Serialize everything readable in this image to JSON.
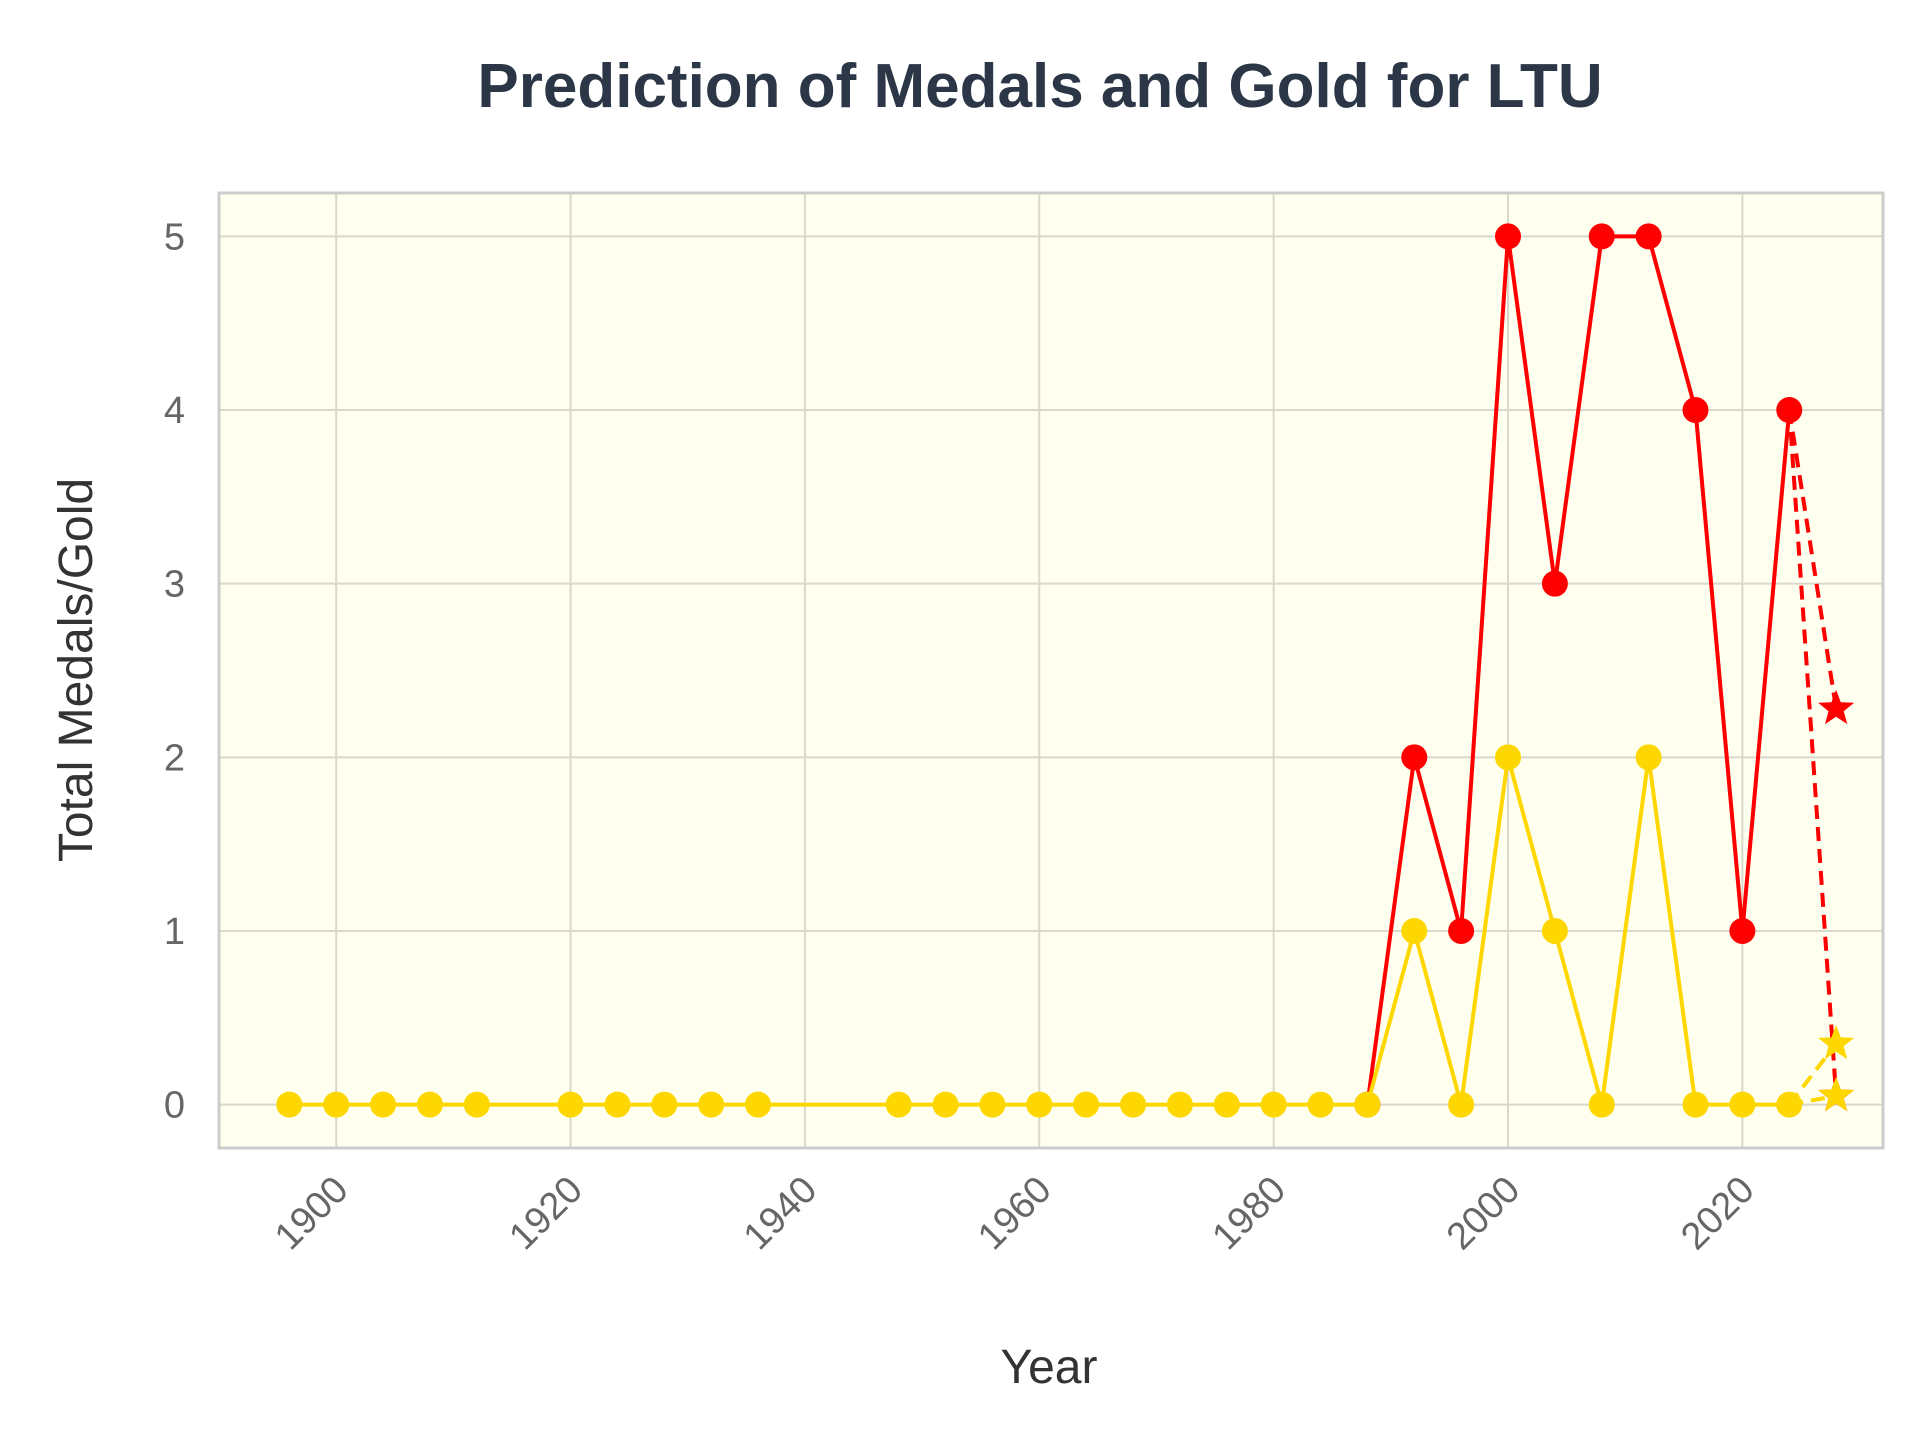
{
  "chart_data": {
    "type": "line",
    "title": "Prediction of Medals and Gold for LTU",
    "xlabel": "Year",
    "ylabel": "Total Medals/Gold",
    "xlim": [
      1890,
      2032
    ],
    "ylim": [
      -0.25,
      5.25
    ],
    "xticks": [
      1900,
      1920,
      1940,
      1960,
      1980,
      2000,
      2020
    ],
    "yticks": [
      0,
      1,
      2,
      3,
      4,
      5
    ],
    "grid": true,
    "legend": "none",
    "colors": {
      "background": "#fffff0",
      "total": "#ff0000",
      "gold": "#ffd700",
      "frame": "#cccccc",
      "grid": "#d8d8cc"
    },
    "series": [
      {
        "key": "total",
        "style": "solid",
        "marker": "circle",
        "color": "#ff0000",
        "x": [
          1988,
          1992,
          1996,
          2000,
          2004,
          2008,
          2012,
          2016,
          2020,
          2024
        ],
        "y": [
          0,
          2,
          1,
          5,
          3,
          5,
          5,
          4,
          1,
          4
        ]
      },
      {
        "key": "gold",
        "style": "solid",
        "marker": "circle",
        "color": "#ffd700",
        "x": [
          1896,
          1900,
          1904,
          1908,
          1912,
          1920,
          1924,
          1928,
          1932,
          1936,
          1948,
          1952,
          1956,
          1960,
          1964,
          1968,
          1972,
          1976,
          1980,
          1984,
          1988,
          1992,
          1996,
          2000,
          2004,
          2008,
          2012,
          2016,
          2020,
          2024
        ],
        "y": [
          0,
          0,
          0,
          0,
          0,
          0,
          0,
          0,
          0,
          0,
          0,
          0,
          0,
          0,
          0,
          0,
          0,
          0,
          0,
          0,
          0,
          1,
          0,
          2,
          1,
          0,
          2,
          0,
          0,
          0
        ]
      },
      {
        "key": "total-prediction-lower",
        "style": "dashed",
        "marker": "star",
        "color": "#ff0000",
        "x": [
          2024,
          2028
        ],
        "y": [
          4,
          0.05
        ]
      },
      {
        "key": "total-prediction",
        "style": "dashed",
        "marker": "star",
        "color": "#ff0000",
        "x": [
          2024,
          2028
        ],
        "y": [
          4,
          2.28
        ]
      },
      {
        "key": "gold-prediction",
        "style": "dashed",
        "marker": "star",
        "color": "#ffd700",
        "x": [
          2024,
          2028
        ],
        "y": [
          0,
          0.35
        ]
      },
      {
        "key": "gold-prediction-lower",
        "style": "dashed",
        "marker": "star",
        "color": "#ffd700",
        "x": [
          2024,
          2028
        ],
        "y": [
          0,
          0.05
        ]
      }
    ]
  }
}
